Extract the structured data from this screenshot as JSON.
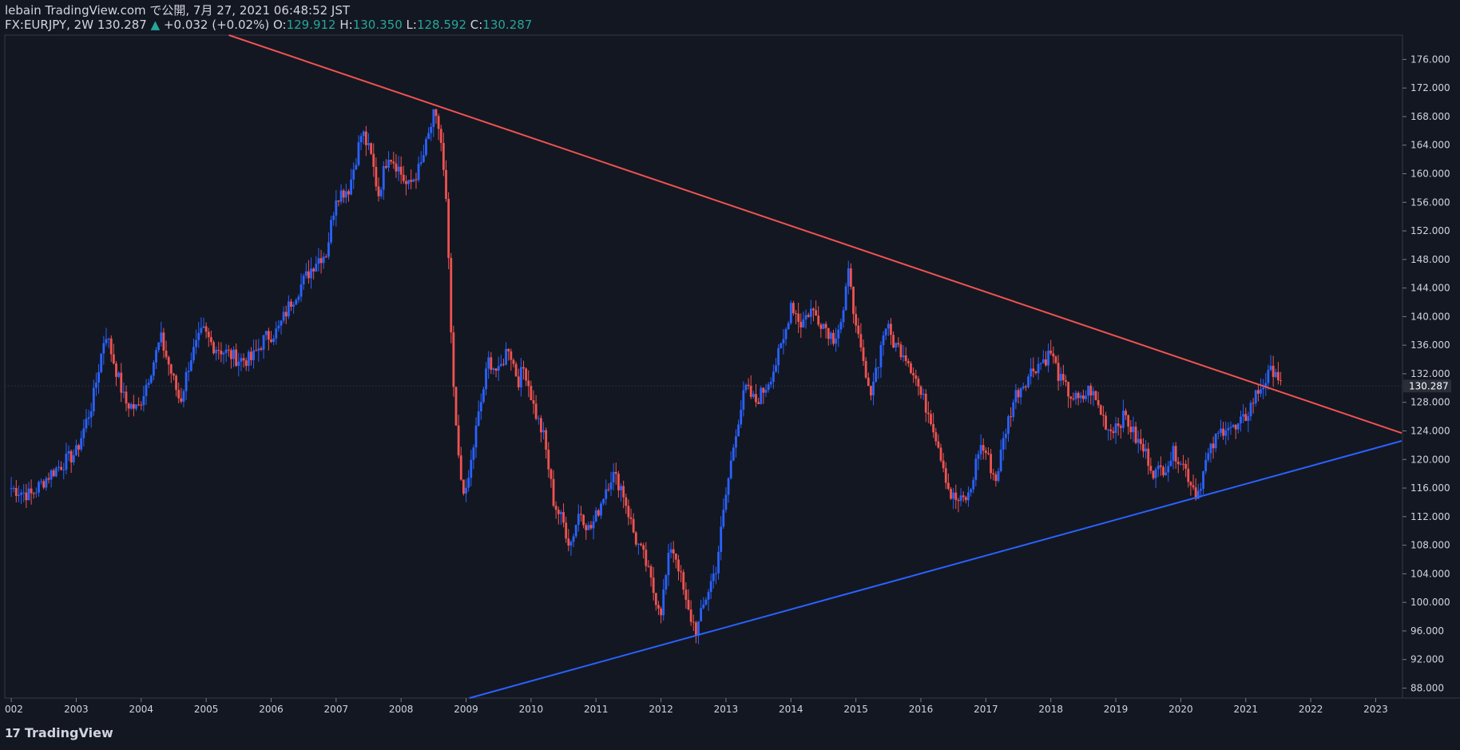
{
  "header": {
    "published": "lebain TradingView.com で公開, 7月 27, 2021 06:48:52 JST",
    "symbol": "FX:EURJPY, 2W 130.287",
    "change_arrow": "▲",
    "change": "+0.032 (+0.02%)",
    "o_label": "O:",
    "o_value": "129.912",
    "h_label": "H:",
    "h_value": "130.350",
    "l_label": "L:",
    "l_value": "128.592",
    "c_label": "C:",
    "c_value": "130.287"
  },
  "footer": {
    "logo_mark": "17",
    "brand": "TradingView"
  },
  "colors": {
    "background": "#131722",
    "up": "#2962ff",
    "down": "#ef5350",
    "resistance": "#ef5350",
    "support": "#2962ff",
    "text": "#d1d4dc",
    "accent": "#26a69a"
  },
  "chart_data": {
    "type": "candlestick",
    "symbol": "FX:EURJPY",
    "interval": "2W",
    "last_price": "130.287",
    "x_ticks": [
      "002",
      "2003",
      "2004",
      "2005",
      "2006",
      "2007",
      "2008",
      "2009",
      "2010",
      "2011",
      "2012",
      "2013",
      "2014",
      "2015",
      "2016",
      "2017",
      "2018",
      "2019",
      "2020",
      "2021",
      "2022",
      "2023"
    ],
    "y_ticks": [
      "176.000",
      "172.000",
      "168.000",
      "164.000",
      "160.000",
      "156.000",
      "152.000",
      "148.000",
      "144.000",
      "140.000",
      "136.000",
      "132.000",
      "128.000",
      "124.000",
      "120.000",
      "116.000",
      "112.000",
      "108.000",
      "104.000",
      "100.000",
      "96.000",
      "92.000",
      "88.000"
    ],
    "x_range": [
      2001.95,
      2023.4
    ],
    "y_range": [
      86.6,
      179.4
    ],
    "series": [
      {
        "name": "EURJPY close",
        "points": [
          [
            2002.0,
            116
          ],
          [
            2002.3,
            115
          ],
          [
            2002.6,
            118
          ],
          [
            2003.0,
            121
          ],
          [
            2003.25,
            128
          ],
          [
            2003.45,
            138
          ],
          [
            2003.6,
            133
          ],
          [
            2003.75,
            128
          ],
          [
            2003.95,
            127
          ],
          [
            2004.2,
            134
          ],
          [
            2004.3,
            137
          ],
          [
            2004.5,
            131
          ],
          [
            2004.6,
            128
          ],
          [
            2004.75,
            134
          ],
          [
            2004.95,
            138
          ],
          [
            2005.1,
            136
          ],
          [
            2005.3,
            135
          ],
          [
            2005.5,
            134
          ],
          [
            2005.7,
            134
          ],
          [
            2005.9,
            137
          ],
          [
            2006.1,
            138
          ],
          [
            2006.3,
            142
          ],
          [
            2006.5,
            145
          ],
          [
            2006.7,
            148
          ],
          [
            2006.85,
            149
          ],
          [
            2007.0,
            157
          ],
          [
            2007.2,
            158
          ],
          [
            2007.4,
            166
          ],
          [
            2007.55,
            162
          ],
          [
            2007.65,
            157
          ],
          [
            2007.8,
            163
          ],
          [
            2007.95,
            161
          ],
          [
            2008.1,
            158
          ],
          [
            2008.3,
            161
          ],
          [
            2008.5,
            168
          ],
          [
            2008.6,
            166
          ],
          [
            2008.7,
            155
          ],
          [
            2008.8,
            130
          ],
          [
            2008.9,
            118
          ],
          [
            2009.0,
            115
          ],
          [
            2009.15,
            124
          ],
          [
            2009.35,
            134
          ],
          [
            2009.5,
            132
          ],
          [
            2009.65,
            136
          ],
          [
            2009.8,
            131
          ],
          [
            2009.9,
            133
          ],
          [
            2010.05,
            127
          ],
          [
            2010.2,
            123
          ],
          [
            2010.35,
            114
          ],
          [
            2010.5,
            111
          ],
          [
            2010.6,
            108
          ],
          [
            2010.75,
            113
          ],
          [
            2010.9,
            110
          ],
          [
            2011.0,
            112
          ],
          [
            2011.15,
            116
          ],
          [
            2011.25,
            118
          ],
          [
            2011.4,
            116
          ],
          [
            2011.6,
            109
          ],
          [
            2011.75,
            106
          ],
          [
            2011.9,
            101
          ],
          [
            2012.0,
            99
          ],
          [
            2012.15,
            108
          ],
          [
            2012.25,
            106
          ],
          [
            2012.4,
            99
          ],
          [
            2012.55,
            96
          ],
          [
            2012.7,
            101
          ],
          [
            2012.85,
            105
          ],
          [
            2013.0,
            115
          ],
          [
            2013.15,
            124
          ],
          [
            2013.3,
            130
          ],
          [
            2013.45,
            128
          ],
          [
            2013.6,
            130
          ],
          [
            2013.75,
            133
          ],
          [
            2013.9,
            137
          ],
          [
            2014.0,
            142
          ],
          [
            2014.15,
            139
          ],
          [
            2014.3,
            141
          ],
          [
            2014.5,
            139
          ],
          [
            2014.65,
            137
          ],
          [
            2014.8,
            140
          ],
          [
            2014.9,
            147
          ],
          [
            2015.0,
            138
          ],
          [
            2015.1,
            134
          ],
          [
            2015.2,
            129
          ],
          [
            2015.35,
            134
          ],
          [
            2015.45,
            139
          ],
          [
            2015.6,
            136
          ],
          [
            2015.75,
            135
          ],
          [
            2015.9,
            132
          ],
          [
            2016.0,
            129
          ],
          [
            2016.15,
            126
          ],
          [
            2016.3,
            121
          ],
          [
            2016.45,
            115
          ],
          [
            2016.6,
            114
          ],
          [
            2016.75,
            115
          ],
          [
            2016.9,
            122
          ],
          [
            2017.0,
            121
          ],
          [
            2017.15,
            117
          ],
          [
            2017.3,
            124
          ],
          [
            2017.45,
            129
          ],
          [
            2017.6,
            131
          ],
          [
            2017.75,
            133
          ],
          [
            2017.9,
            134
          ],
          [
            2018.0,
            135
          ],
          [
            2018.15,
            131
          ],
          [
            2018.3,
            129
          ],
          [
            2018.45,
            128
          ],
          [
            2018.6,
            130
          ],
          [
            2018.75,
            127
          ],
          [
            2018.9,
            124
          ],
          [
            2019.0,
            125
          ],
          [
            2019.15,
            126
          ],
          [
            2019.3,
            123
          ],
          [
            2019.45,
            121
          ],
          [
            2019.6,
            118
          ],
          [
            2019.75,
            119
          ],
          [
            2019.9,
            121
          ],
          [
            2020.0,
            120
          ],
          [
            2020.15,
            117
          ],
          [
            2020.25,
            115
          ],
          [
            2020.4,
            120
          ],
          [
            2020.55,
            123
          ],
          [
            2020.7,
            125
          ],
          [
            2020.85,
            124
          ],
          [
            2021.0,
            126
          ],
          [
            2021.15,
            129
          ],
          [
            2021.3,
            131
          ],
          [
            2021.45,
            133
          ],
          [
            2021.55,
            130
          ]
        ]
      }
    ],
    "trendlines": [
      {
        "name": "resistance",
        "from": [
          2005.35,
          179.4
        ],
        "to": [
          2023.4,
          123.7
        ]
      },
      {
        "name": "support",
        "from": [
          2009.05,
          86.6
        ],
        "to": [
          2023.4,
          122.6
        ]
      }
    ],
    "grid": false
  }
}
